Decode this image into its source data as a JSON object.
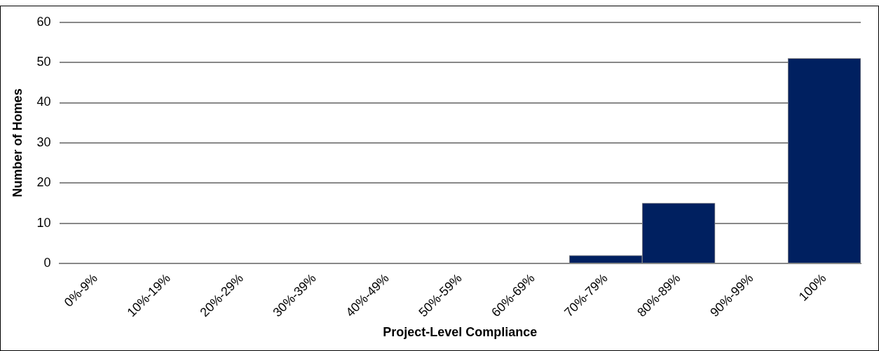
{
  "chart_data": {
    "type": "bar",
    "xlabel": "Project-Level Compliance",
    "ylabel": "Number of Homes",
    "categories": [
      "0%-9%",
      "10%-19%",
      "20%-29%",
      "30%-39%",
      "40%-49%",
      "50%-59%",
      "60%-69%",
      "70%-79%",
      "80%-89%",
      "90%-99%",
      "100%"
    ],
    "values": [
      0,
      0,
      0,
      0,
      0,
      0,
      0,
      2,
      15,
      0,
      51
    ],
    "color": "#002060",
    "ylim": [
      0,
      60
    ],
    "yticks": [
      0,
      10,
      20,
      30,
      40,
      50,
      60
    ],
    "grid": "y",
    "legend": false
  }
}
